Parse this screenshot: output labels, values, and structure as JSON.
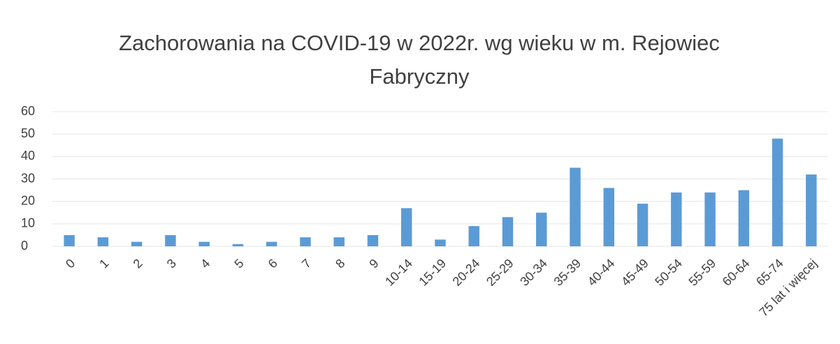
{
  "chart_data": {
    "type": "bar",
    "title": "Zachorowania na COVID-19 w 2022r. wg wieku w m. Rejowiec Fabryczny",
    "categories": [
      "0",
      "1",
      "2",
      "3",
      "4",
      "5",
      "6",
      "7",
      "8",
      "9",
      "10-14",
      "15-19",
      "20-24",
      "25-29",
      "30-34",
      "35-39",
      "40-44",
      "45-49",
      "50-54",
      "55-59",
      "60-64",
      "65-74",
      "75 lat i więcej"
    ],
    "values": [
      5,
      4,
      2,
      5,
      2,
      1,
      2,
      4,
      4,
      5,
      17,
      3,
      9,
      13,
      15,
      35,
      26,
      19,
      24,
      24,
      25,
      48,
      32
    ],
    "color": "#5b9bd5",
    "ylim": [
      0,
      60
    ],
    "yticks": [
      0,
      10,
      20,
      30,
      40,
      50,
      60
    ],
    "grid": true
  }
}
